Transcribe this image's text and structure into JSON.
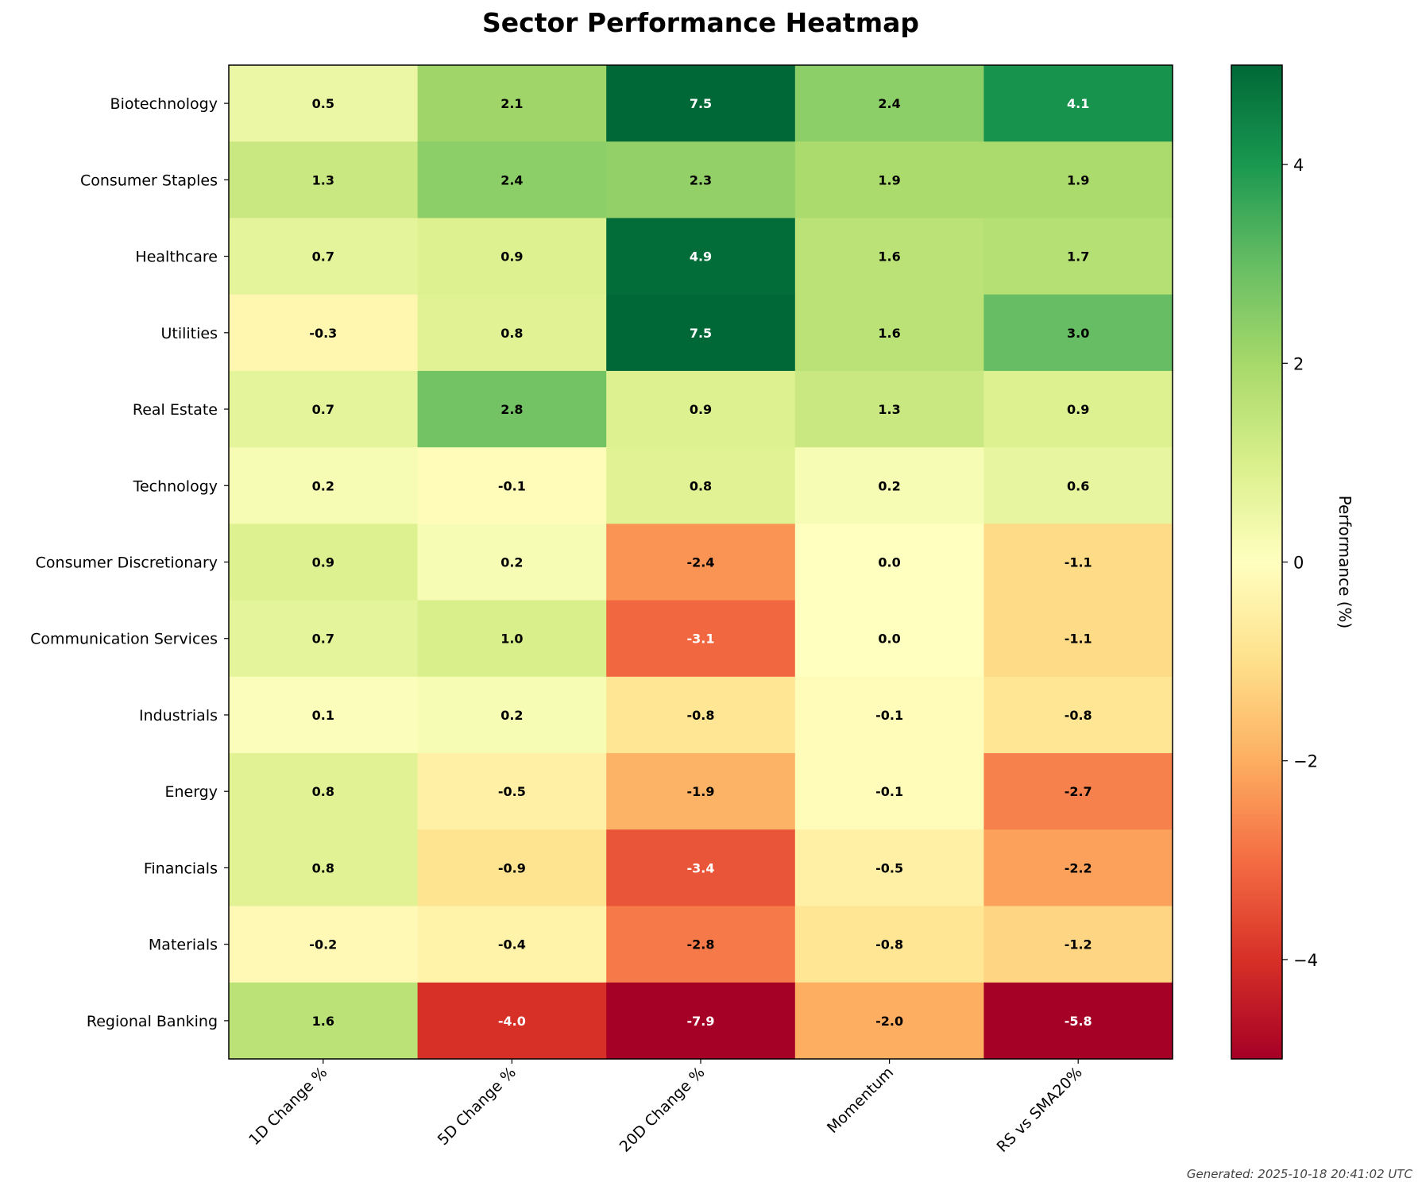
{
  "chart_data": {
    "type": "heatmap",
    "title": "Sector Performance Heatmap",
    "rows": [
      "Biotechnology",
      "Consumer Staples",
      "Healthcare",
      "Utilities",
      "Real Estate",
      "Technology",
      "Consumer Discretionary",
      "Communication Services",
      "Industrials",
      "Energy",
      "Financials",
      "Materials",
      "Regional Banking"
    ],
    "columns": [
      "1D Change %",
      "5D Change %",
      "20D Change %",
      "Momentum",
      "RS vs SMA20%"
    ],
    "values": [
      [
        0.5,
        2.1,
        7.5,
        2.4,
        4.1
      ],
      [
        1.3,
        2.4,
        2.3,
        1.9,
        1.9
      ],
      [
        0.7,
        0.9,
        4.9,
        1.6,
        1.7
      ],
      [
        -0.3,
        0.8,
        7.5,
        1.6,
        3.0
      ],
      [
        0.7,
        2.8,
        0.9,
        1.3,
        0.9
      ],
      [
        0.2,
        -0.1,
        0.8,
        0.2,
        0.6
      ],
      [
        0.9,
        0.2,
        -2.4,
        0.0,
        -1.1
      ],
      [
        0.7,
        1.0,
        -3.1,
        0.0,
        -1.1
      ],
      [
        0.1,
        0.2,
        -0.8,
        -0.1,
        -0.8
      ],
      [
        0.8,
        -0.5,
        -1.9,
        -0.1,
        -2.7
      ],
      [
        0.8,
        -0.9,
        -3.4,
        -0.5,
        -2.2
      ],
      [
        -0.2,
        -0.4,
        -2.8,
        -0.8,
        -1.2
      ],
      [
        1.6,
        -4.0,
        -7.9,
        -2.0,
        -5.8
      ]
    ],
    "colorscale": "RdYlGn",
    "vmin": -5,
    "vmax": 5,
    "colorbar": {
      "label": "Performance (%)",
      "ticks": [
        4,
        2,
        0,
        -2,
        -4
      ],
      "tick_labels": [
        "4",
        "2",
        "0",
        "−2",
        "−4"
      ]
    }
  },
  "footnote": "Generated: 2025-10-18 20:41:02 UTC"
}
